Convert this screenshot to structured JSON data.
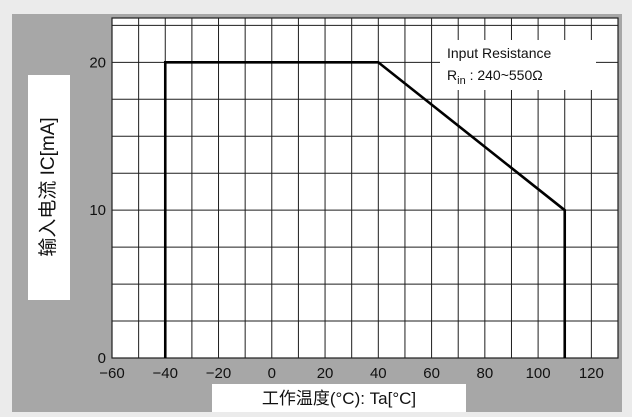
{
  "chart_data": {
    "type": "line",
    "xlabel": "工作温度(°C): Ta[°C]",
    "ylabel": "输入电流 IC[mA]",
    "xlim": [
      -60,
      130
    ],
    "ylim": [
      0,
      23
    ],
    "x_ticks": [
      -60,
      -40,
      -20,
      0,
      20,
      40,
      60,
      80,
      100,
      120
    ],
    "y_ticks": [
      0,
      10,
      20
    ],
    "grid": true,
    "grid_minor_x": 10,
    "grid_minor_y": 2.5,
    "annotation": {
      "line1": "Input Resistance",
      "line2_main": "R",
      "line2_sub": "in",
      "line2_rest": " : 240~550Ω"
    },
    "series": [
      {
        "x": [
          -40,
          -40,
          40,
          110,
          110
        ],
        "y": [
          0,
          20,
          20,
          10,
          0
        ]
      }
    ]
  },
  "colors": {
    "panel": "#a7a7a7",
    "plot": "#ffffff",
    "grid": "#1e1e1e",
    "line": "#000000"
  }
}
